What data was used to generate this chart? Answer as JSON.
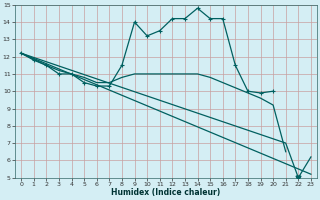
{
  "xlabel": "Humidex (Indice chaleur)",
  "xlim": [
    -0.5,
    23.5
  ],
  "ylim": [
    5,
    15
  ],
  "xticks": [
    0,
    1,
    2,
    3,
    4,
    5,
    6,
    7,
    8,
    9,
    10,
    11,
    12,
    13,
    14,
    15,
    16,
    17,
    18,
    19,
    20,
    21,
    22,
    23
  ],
  "yticks": [
    5,
    6,
    7,
    8,
    9,
    10,
    11,
    12,
    13,
    14,
    15
  ],
  "bg_color": "#d4eef4",
  "grid_color": "#c8a0a0",
  "line_color": "#006060",
  "series1_x": [
    0,
    1,
    2,
    3,
    4,
    5,
    6,
    7,
    8,
    9,
    10,
    11,
    12,
    13,
    14,
    15,
    16,
    17,
    18,
    19,
    20
  ],
  "series1_y": [
    12.2,
    11.8,
    11.5,
    11.0,
    11.0,
    10.5,
    10.3,
    10.3,
    11.5,
    14.0,
    13.2,
    13.5,
    14.2,
    14.2,
    14.8,
    14.2,
    14.2,
    11.5,
    10.0,
    9.9,
    10.0
  ],
  "series2_x": [
    0,
    2,
    3,
    4,
    5,
    6,
    7,
    8,
    9,
    10,
    11,
    12,
    13,
    14,
    15,
    16,
    17,
    18,
    19,
    20,
    21
  ],
  "series2_y": [
    12.2,
    11.5,
    11.2,
    11.0,
    10.8,
    10.5,
    10.5,
    10.8,
    11.0,
    11.0,
    11.0,
    11.0,
    11.0,
    11.0,
    10.8,
    10.5,
    10.2,
    9.9,
    9.6,
    9.2,
    6.5
  ],
  "series3_x": [
    0,
    23
  ],
  "series3_y": [
    12.2,
    5.2
  ],
  "series4_x": [
    0,
    21,
    22,
    23
  ],
  "series4_y": [
    12.2,
    7.0,
    5.0,
    6.2
  ],
  "xlabel_fontsize": 5.5,
  "tick_fontsize": 4.5,
  "ylabel_fontsize": 5
}
